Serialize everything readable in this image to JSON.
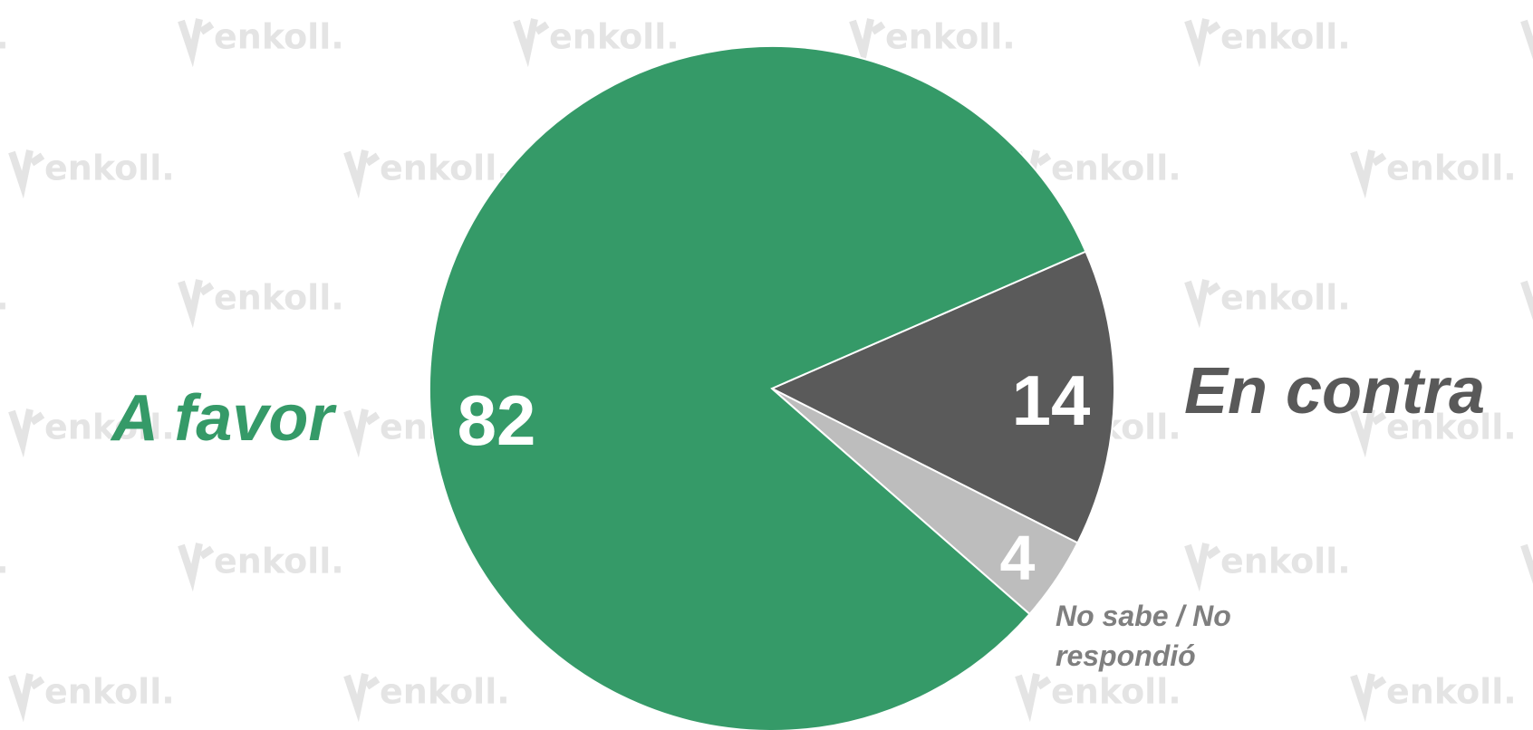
{
  "chart_data": {
    "type": "pie",
    "categories": [
      "En contra",
      "No sabe / No respondió",
      "A favor"
    ],
    "values": [
      14,
      4,
      82
    ],
    "colors": [
      "#5a5a5a",
      "#bdbdbd",
      "#359a68"
    ],
    "label_colors": [
      "#595959",
      "#7f7f7f",
      "#359a68"
    ],
    "watermark": "enkoll."
  }
}
